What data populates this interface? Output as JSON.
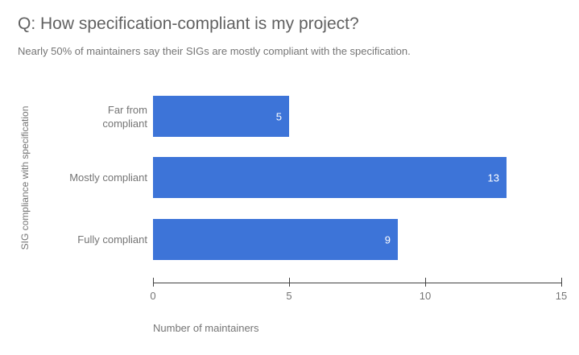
{
  "title": "Q: How specification-compliant is my project?",
  "subtitle": "Nearly 50% of maintainers say their SIGs are mostly compliant with the specification.",
  "chart_data": {
    "type": "bar",
    "orientation": "horizontal",
    "title": "Q: How specification-compliant is my project?",
    "subtitle": "Nearly 50% of maintainers say their SIGs are mostly compliant with the specification.",
    "categories": [
      "Far from compliant",
      "Mostly compliant",
      "Fully compliant"
    ],
    "category_label_lines": [
      [
        "Far from",
        "compliant"
      ],
      [
        "Mostly compliant"
      ],
      [
        "Fully compliant"
      ]
    ],
    "values": [
      5,
      13,
      9
    ],
    "value_labels": [
      "5",
      "13",
      "9"
    ],
    "xlabel": "Number of maintainers",
    "ylabel": "SIG compliance with specification",
    "xlim": [
      0,
      15
    ],
    "xticks": [
      "0",
      "5",
      "10",
      "15"
    ],
    "xtick_values": [
      0,
      5,
      10,
      15
    ],
    "grid": false,
    "legend": false,
    "bar_color": "#3d74d8",
    "value_label_color": "#ffffff"
  },
  "colors": {
    "background": "#ffffff",
    "title": "#616161",
    "subtitle": "#757575",
    "axis_text": "#757575",
    "axis_line": "#424242",
    "bar": "#3d74d8",
    "bar_value_text": "#ffffff"
  }
}
